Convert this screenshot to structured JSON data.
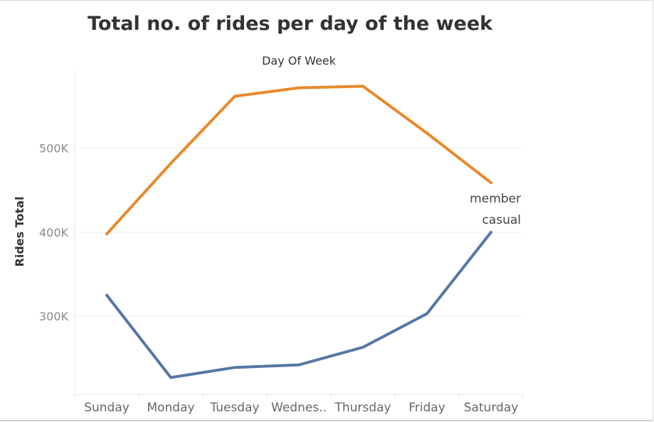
{
  "chart_data": {
    "type": "line",
    "title": "Total no. of rides per day of the week",
    "column_header": "Day Of Week",
    "ylabel": "Rides Total",
    "categories": [
      "Sunday",
      "Monday",
      "Tuesday",
      "Wednes..",
      "Thursday",
      "Friday",
      "Saturday"
    ],
    "yticks": [
      300000,
      400000,
      500000
    ],
    "ytick_labels": [
      "300K",
      "400K",
      "500K"
    ],
    "ylim": [
      207000,
      592000
    ],
    "grid": true,
    "series": [
      {
        "name": "member",
        "color": "#e8892b",
        "values": [
          398000,
          482000,
          562000,
          572000,
          574000,
          518000,
          459000
        ]
      },
      {
        "name": "casual",
        "color": "#5677a4",
        "values": [
          325000,
          227000,
          239000,
          242000,
          263000,
          303000,
          400000
        ]
      }
    ]
  }
}
